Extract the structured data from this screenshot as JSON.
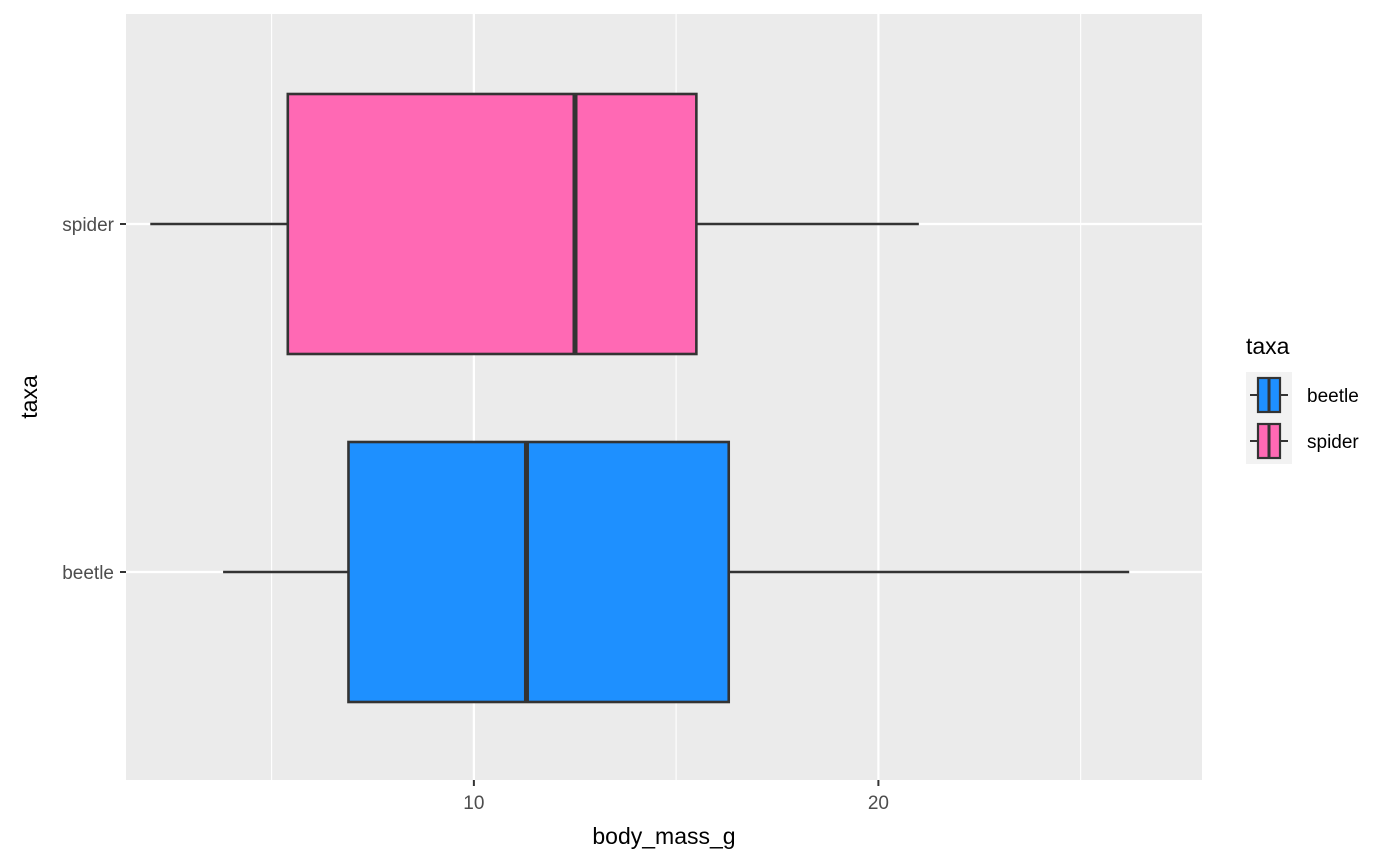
{
  "chart_data": {
    "type": "boxplot",
    "orientation": "horizontal",
    "xlabel": "body_mass_g",
    "ylabel": "taxa",
    "xlim": [
      1.4,
      28.0
    ],
    "x_major_ticks": [
      10,
      20
    ],
    "x_minor_gridlines": [
      5,
      15,
      25
    ],
    "categories": [
      "beetle",
      "spider"
    ],
    "boxes": [
      {
        "category": "beetle",
        "min": 3.8,
        "q1": 6.9,
        "median": 11.3,
        "q3": 16.3,
        "max": 26.2,
        "fill": "#1E90FF"
      },
      {
        "category": "spider",
        "min": 2.0,
        "q1": 5.4,
        "median": 12.5,
        "q3": 15.5,
        "max": 21.0,
        "fill": "#FF69B4"
      }
    ],
    "grid": true,
    "legend": {
      "title": "taxa",
      "position": "right",
      "entries": [
        {
          "label": "beetle",
          "fill": "#1E90FF"
        },
        {
          "label": "spider",
          "fill": "#FF69B4"
        }
      ]
    },
    "colors": {
      "panel_background": "#EBEBEB",
      "grid": "#FFFFFF",
      "box_outline": "#333333"
    }
  }
}
